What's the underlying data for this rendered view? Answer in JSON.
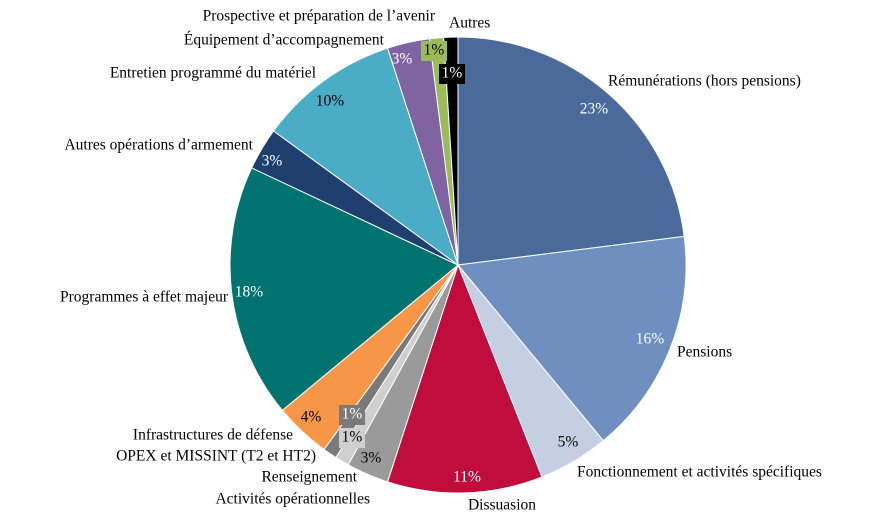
{
  "chart_data": {
    "type": "pie",
    "categories": [
      "Rémunérations (hors pensions)",
      "Pensions",
      "Fonctionnement et activités spécifiques",
      "Dissuasion",
      "Activités opérationnelles",
      "Renseignement",
      "OPEX et MISSINT (T2 et HT2)",
      "Infrastructures de défense",
      "Programmes à effet majeur",
      "Autres opérations d’armement",
      "Entretien programmé du matériel",
      "Équipement d’accompagnement",
      "Prospective et préparation de l’avenir",
      "Autres"
    ],
    "values": [
      23,
      16,
      5,
      11,
      3,
      1,
      1,
      4,
      18,
      3,
      10,
      3,
      1,
      1
    ],
    "value_labels": [
      "23%",
      "16%",
      "5%",
      "11%",
      "3%",
      "1%",
      "1%",
      "4%",
      "18%",
      "3%",
      "10%",
      "3%",
      "1%",
      "1%"
    ],
    "colors": [
      "#4a6a9c",
      "#6e8fbf",
      "#c5cfe3",
      "#c00d3e",
      "#9a9a9a",
      "#cfcfcf",
      "#7a7a7a",
      "#f79646",
      "#007370",
      "#1f3f6e",
      "#4bacc6",
      "#8064a2",
      "#9bbb59",
      "#000000"
    ]
  }
}
